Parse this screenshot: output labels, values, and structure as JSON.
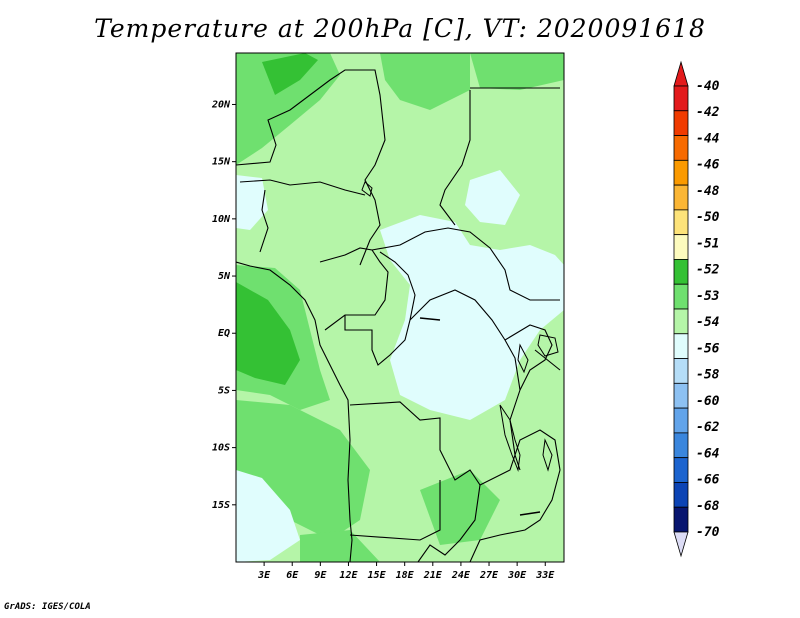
{
  "title": "Temperature at 200hPa [C], VT: 2020091618",
  "footer": "GrADS: IGES/COLA",
  "map": {
    "lon_range": [
      0,
      35
    ],
    "lat_range": [
      -20,
      24.5
    ],
    "lat_ticks": [
      {
        "value": 20,
        "label": "20N"
      },
      {
        "value": 15,
        "label": "15N"
      },
      {
        "value": 10,
        "label": "10N"
      },
      {
        "value": 5,
        "label": "5N"
      },
      {
        "value": 0,
        "label": "EQ"
      },
      {
        "value": -5,
        "label": "5S"
      },
      {
        "value": -10,
        "label": "10S"
      },
      {
        "value": -15,
        "label": "15S"
      }
    ],
    "lon_ticks": [
      {
        "value": 3,
        "label": "3E"
      },
      {
        "value": 6,
        "label": "6E"
      },
      {
        "value": 9,
        "label": "9E"
      },
      {
        "value": 12,
        "label": "12E"
      },
      {
        "value": 15,
        "label": "15E"
      },
      {
        "value": 18,
        "label": "18E"
      },
      {
        "value": 21,
        "label": "21E"
      },
      {
        "value": 24,
        "label": "24E"
      },
      {
        "value": 27,
        "label": "27E"
      },
      {
        "value": 30,
        "label": "30E"
      },
      {
        "value": 33,
        "label": "33E"
      }
    ]
  },
  "colorbar": {
    "levels": [
      {
        "label": "-40",
        "color": "#e31a1c"
      },
      {
        "label": "-42",
        "color": "#f03b00"
      },
      {
        "label": "-44",
        "color": "#f76a00"
      },
      {
        "label": "-46",
        "color": "#fb9a00"
      },
      {
        "label": "-48",
        "color": "#fbb635"
      },
      {
        "label": "-50",
        "color": "#fde37a"
      },
      {
        "label": "-51",
        "color": "#fdfbbe"
      },
      {
        "label": "-52",
        "color": "#34c134"
      },
      {
        "label": "-53",
        "color": "#6fe06f"
      },
      {
        "label": "-54",
        "color": "#b5f5a8"
      },
      {
        "label": "-56",
        "color": "#e0fdfd"
      },
      {
        "label": "-58",
        "color": "#b5ddf7"
      },
      {
        "label": "-60",
        "color": "#8dc1f2"
      },
      {
        "label": "-62",
        "color": "#62a4ea"
      },
      {
        "label": "-64",
        "color": "#3a86dd"
      },
      {
        "label": "-66",
        "color": "#1c64cf"
      },
      {
        "label": "-68",
        "color": "#0c44b5"
      },
      {
        "label": "-70",
        "color": "#081670"
      }
    ],
    "low_end_color": "#dcdcf5"
  }
}
